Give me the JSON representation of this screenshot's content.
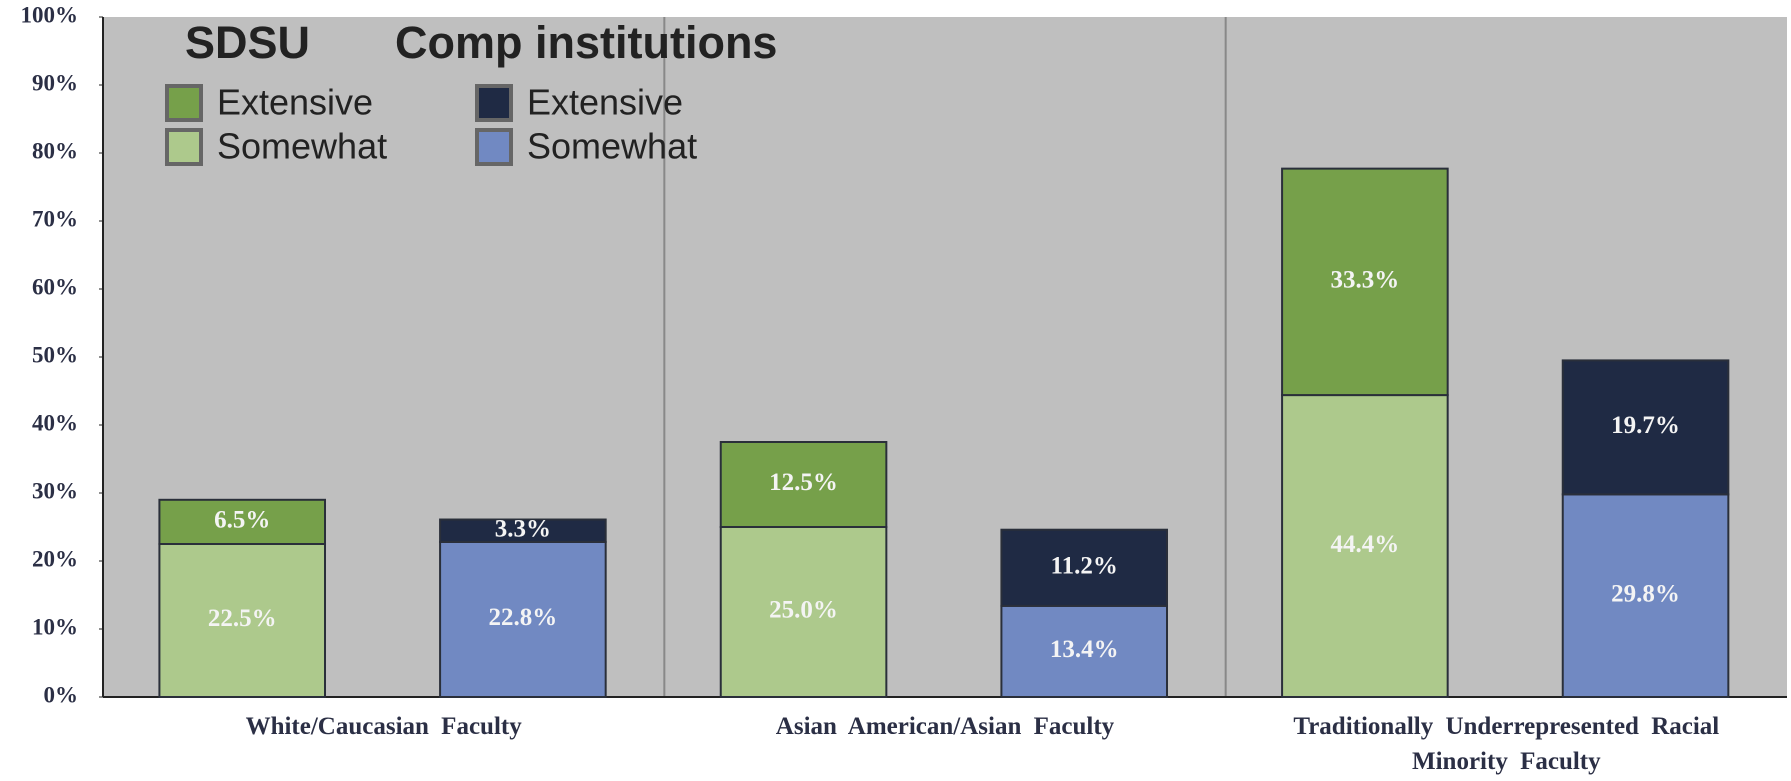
{
  "chart_data": {
    "type": "grouped-stacked-bar",
    "categories": [
      "White/Caucasian Faculty",
      "Asian American/Asian Faculty",
      "Traditionally Underrepresented Racial Minority Faculty"
    ],
    "groups": [
      {
        "name": "SDSU",
        "series": [
          {
            "name": "Extensive",
            "color": "#76a04a",
            "values": [
              6.5,
              12.5,
              33.3
            ],
            "value_labels": [
              "6.5%",
              "12.5%",
              "33.3%"
            ]
          },
          {
            "name": "Somewhat",
            "color": "#adc98c",
            "values": [
              22.5,
              25.0,
              44.4
            ],
            "value_labels": [
              "22.5%",
              "25.0%",
              "44.4%"
            ]
          }
        ]
      },
      {
        "name": "Comp institutions",
        "series": [
          {
            "name": "Extensive",
            "color": "#1f2a44",
            "values": [
              3.3,
              11.2,
              19.7
            ],
            "value_labels": [
              "3.3%",
              "11.2%",
              "19.7%"
            ]
          },
          {
            "name": "Somewhat",
            "color": "#7189c2",
            "values": [
              22.8,
              13.4,
              29.8
            ],
            "value_labels": [
              "22.8%",
              "13.4%",
              "29.8%"
            ]
          }
        ]
      }
    ],
    "ylim": [
      0,
      100
    ],
    "yticks": [
      {
        "value": 0,
        "label": "0%"
      },
      {
        "value": 10,
        "label": "10%"
      },
      {
        "value": 20,
        "label": "20%"
      },
      {
        "value": 30,
        "label": "30%"
      },
      {
        "value": 40,
        "label": "40%"
      },
      {
        "value": 50,
        "label": "50%"
      },
      {
        "value": 60,
        "label": "60%"
      },
      {
        "value": 70,
        "label": "70%"
      },
      {
        "value": 80,
        "label": "80%"
      },
      {
        "value": 90,
        "label": "90%"
      },
      {
        "value": 100,
        "label": "100%"
      }
    ]
  }
}
